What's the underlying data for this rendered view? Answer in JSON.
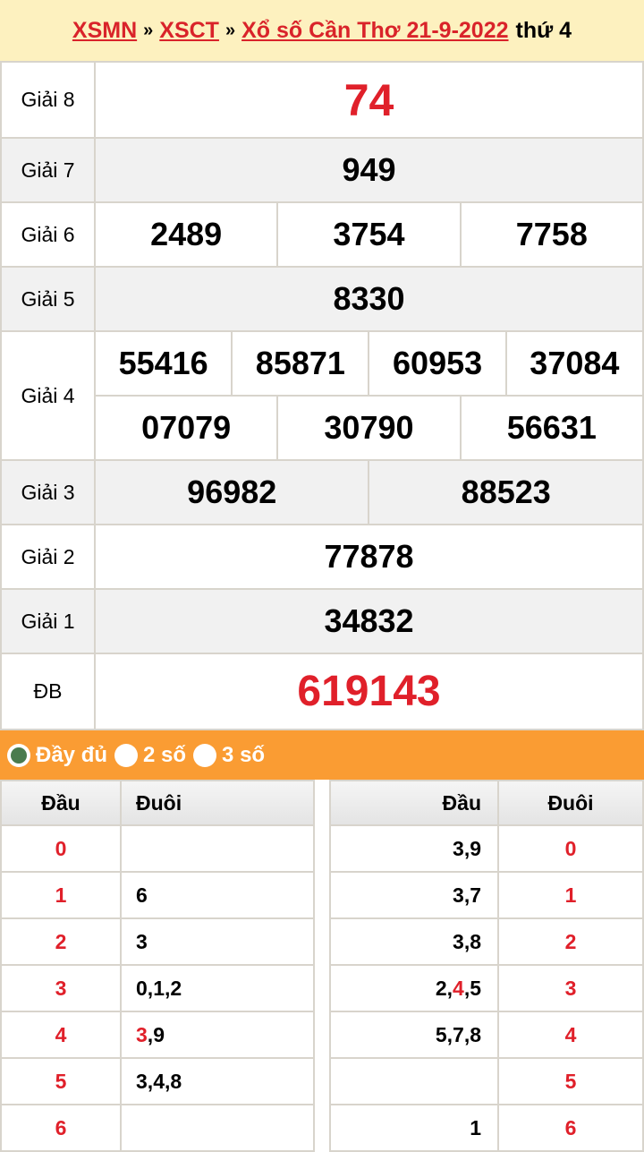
{
  "header": {
    "link1": "XSMN",
    "sep1": "»",
    "link2": "XSCT",
    "sep2": "»",
    "link3": "Xổ số Cần Thơ 21-9-2022",
    "day": "thứ 4"
  },
  "prizes": {
    "g8": {
      "label": "Giải 8",
      "values": [
        "74"
      ]
    },
    "g7": {
      "label": "Giải 7",
      "values": [
        "949"
      ]
    },
    "g6": {
      "label": "Giải 6",
      "values": [
        "2489",
        "3754",
        "7758"
      ]
    },
    "g5": {
      "label": "Giải 5",
      "values": [
        "8330"
      ]
    },
    "g4": {
      "label": "Giải 4",
      "values": [
        "55416",
        "85871",
        "60953",
        "37084",
        "07079",
        "30790",
        "56631"
      ]
    },
    "g3": {
      "label": "Giải 3",
      "values": [
        "96982",
        "88523"
      ]
    },
    "g2": {
      "label": "Giải 2",
      "values": [
        "77878"
      ]
    },
    "g1": {
      "label": "Giải 1",
      "values": [
        "34832"
      ]
    },
    "db": {
      "label": "ĐB",
      "values": [
        "619143"
      ]
    }
  },
  "colors": {
    "accent": "#e0202a",
    "orange": "#fa9c33",
    "header_bg": "#fdf1bf"
  },
  "options": [
    {
      "label": "Đầy đủ",
      "selected": true
    },
    {
      "label": "2 số",
      "selected": false
    },
    {
      "label": "3 số",
      "selected": false
    }
  ],
  "loto_left": {
    "headers": [
      "Đầu",
      "Đuôi"
    ],
    "rows": [
      {
        "key": "0",
        "vals": []
      },
      {
        "key": "1",
        "vals": [
          [
            "6",
            false
          ]
        ]
      },
      {
        "key": "2",
        "vals": [
          [
            "3",
            false
          ]
        ]
      },
      {
        "key": "3",
        "vals": [
          [
            "0",
            false
          ],
          [
            "1",
            false
          ],
          [
            "2",
            false
          ]
        ]
      },
      {
        "key": "4",
        "vals": [
          [
            "3",
            true
          ],
          [
            "9",
            false
          ]
        ]
      },
      {
        "key": "5",
        "vals": [
          [
            "3",
            false
          ],
          [
            "4",
            false
          ],
          [
            "8",
            false
          ]
        ]
      },
      {
        "key": "6",
        "vals": []
      }
    ]
  },
  "loto_right": {
    "headers": [
      "Đầu",
      "Đuôi"
    ],
    "rows": [
      {
        "key": "0",
        "vals": [
          [
            "3",
            false
          ],
          [
            "9",
            false
          ]
        ]
      },
      {
        "key": "1",
        "vals": [
          [
            "3",
            false
          ],
          [
            "7",
            false
          ]
        ]
      },
      {
        "key": "2",
        "vals": [
          [
            "3",
            false
          ],
          [
            "8",
            false
          ]
        ]
      },
      {
        "key": "3",
        "vals": [
          [
            "2",
            false
          ],
          [
            "4",
            true
          ],
          [
            "5",
            false
          ]
        ]
      },
      {
        "key": "4",
        "vals": [
          [
            "5",
            false
          ],
          [
            "7",
            false
          ],
          [
            "8",
            false
          ]
        ]
      },
      {
        "key": "5",
        "vals": []
      },
      {
        "key": "6",
        "vals": [
          [
            "1",
            false
          ]
        ]
      }
    ]
  }
}
